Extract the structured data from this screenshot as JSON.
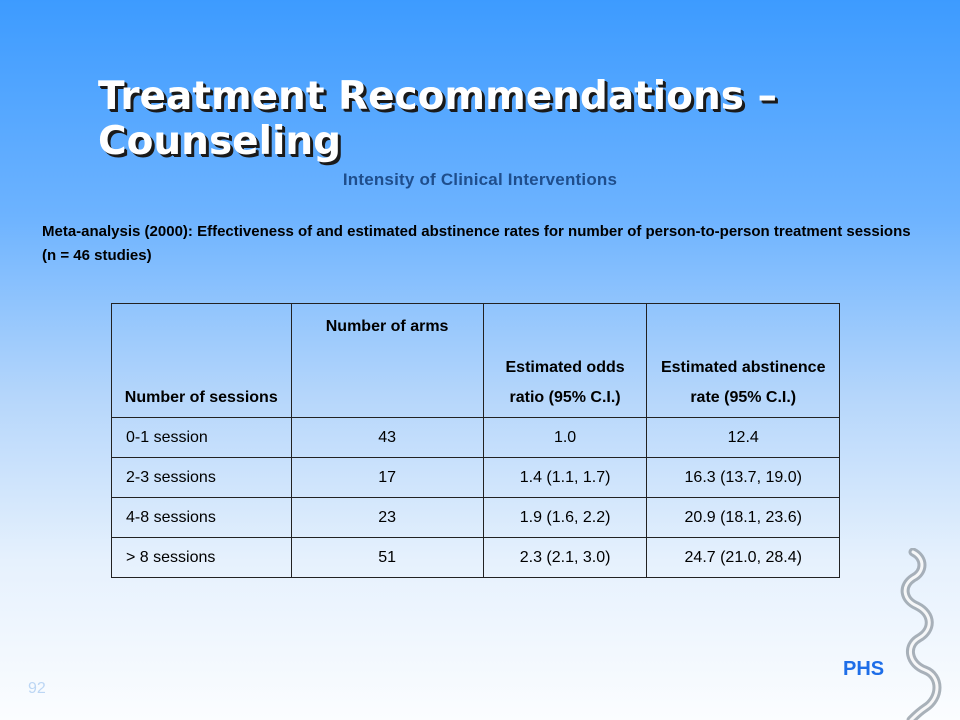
{
  "slide": {
    "title": "Treatment Recommendations – Counseling",
    "subtitle": "Intensity of Clinical Interventions",
    "intro": "Meta-analysis (2000): Effectiveness of and estimated abstinence rates for number of person-to-person treatment sessions (n = 46 studies)",
    "logo_text": "PHS",
    "page_number": "92"
  },
  "table": {
    "headers": [
      "Number of sessions",
      "Number of arms",
      "Estimated odds ratio (95% C.I.)",
      "Estimated abstinence rate (95% C.I.)"
    ],
    "rows": [
      [
        "0-1 session",
        "43",
        "1.0",
        "12.4"
      ],
      [
        "2-3 sessions",
        "17",
        "1.4 (1.1, 1.7)",
        "16.3 (13.7, 19.0)"
      ],
      [
        "4-8 sessions",
        "23",
        "1.9 (1.6, 2.2)",
        "20.9 (18.1, 23.6)"
      ],
      [
        "> 8 sessions",
        "51",
        "2.3 (2.1, 3.0)",
        "24.7 (21.0, 28.4)"
      ]
    ]
  },
  "colors": {
    "background_top": "#3d9bff",
    "background_bottom": "#fbfdff",
    "title": "#ffffff",
    "subtitle": "#1f4e8c",
    "logo": "#1e6ee8"
  },
  "icons": [
    "phs-swirl-logo-icon"
  ]
}
